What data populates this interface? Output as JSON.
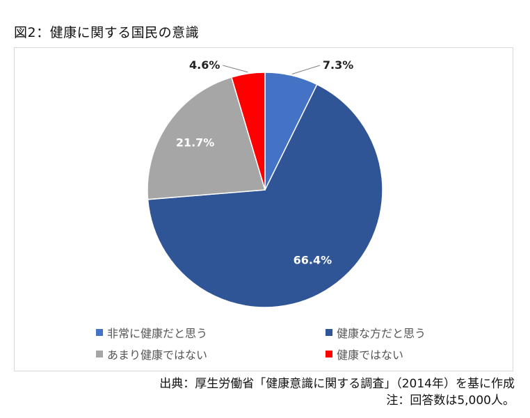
{
  "title": "図2：健康に関する国民の意識",
  "chart_data": {
    "type": "pie",
    "categories": [
      "非常に健康だと思う",
      "健康な方だと思う",
      "あまり健康ではない",
      "健康ではない"
    ],
    "values": [
      7.3,
      66.4,
      21.7,
      4.6
    ],
    "data_labels": [
      "7.3%",
      "66.4%",
      "21.7%",
      "4.6%"
    ],
    "colors": [
      "#4472C4",
      "#2F5597",
      "#A6A6A6",
      "#FF0000"
    ],
    "start_angle": "12 o'clock",
    "direction": "clockwise",
    "legend_position": "bottom"
  },
  "source": {
    "line1": "出典：厚生労働省「健康意識に関する調査」（2014年）を基に作成",
    "line2": "注：回答数は5,000人。"
  }
}
